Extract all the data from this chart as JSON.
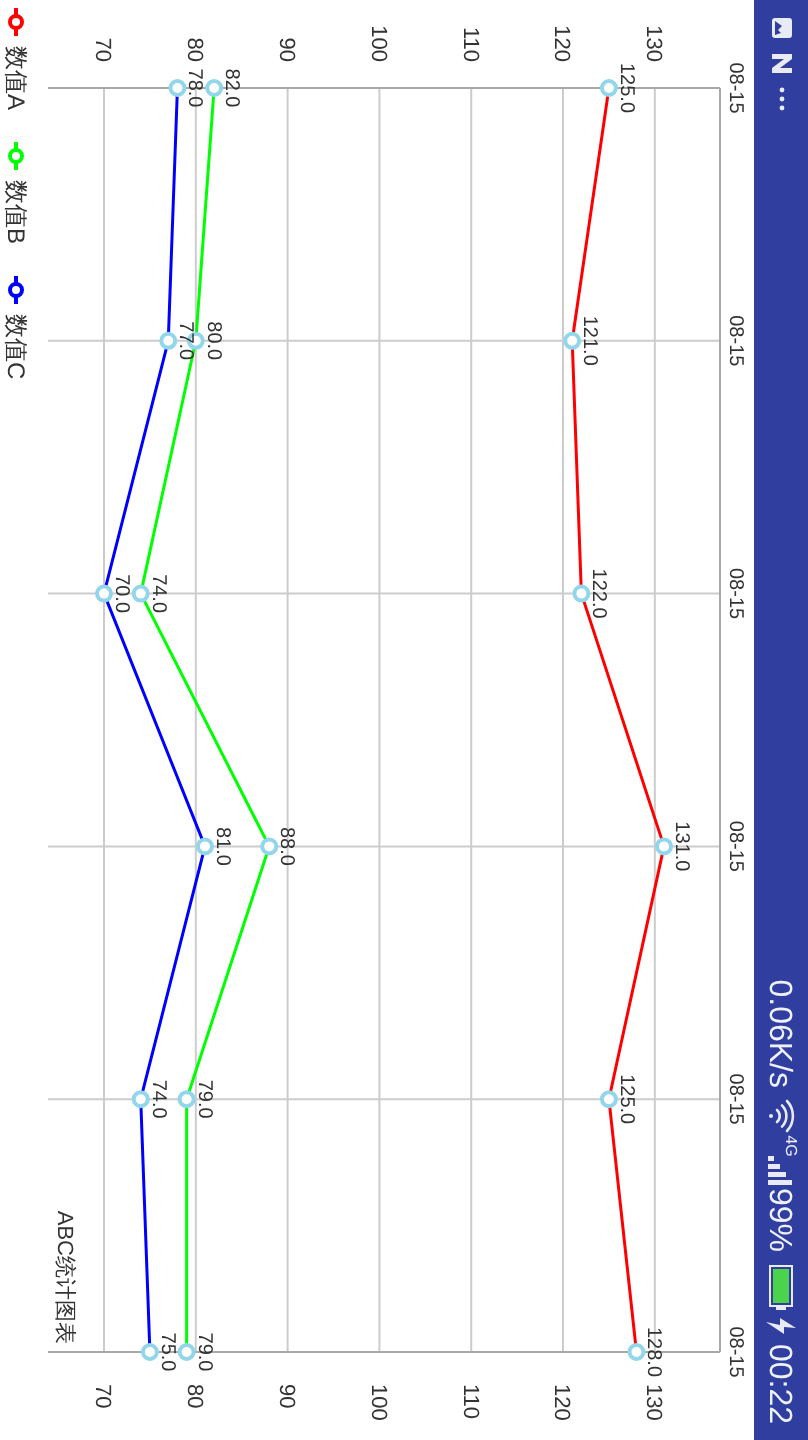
{
  "chart_data": {
    "type": "line",
    "orientation": "horizontal",
    "categories": [
      "08-15",
      "08-15",
      "08-15",
      "08-15",
      "08-15",
      "08-15"
    ],
    "series": [
      {
        "name": "数值A",
        "color": "#ff0000",
        "values": [
          125,
          121,
          122,
          131,
          125,
          128
        ],
        "value_labels": [
          "125.0",
          "121.0",
          "122.0",
          "131.0",
          "125.0",
          "128.0"
        ]
      },
      {
        "name": "数值B",
        "color": "#00ff00",
        "values": [
          82,
          80,
          74,
          88,
          79,
          79
        ],
        "value_labels": [
          "82.0",
          "80.0",
          "74.0",
          "88.0",
          "79.0",
          "79.0"
        ]
      },
      {
        "name": "数值C",
        "color": "#0000ff",
        "values": [
          78,
          77,
          70,
          81,
          74,
          75
        ],
        "value_labels": [
          "78.0",
          "77.0",
          "70.0",
          "81.0",
          "74.0",
          "75.0"
        ]
      }
    ],
    "xlim": [
      63.9,
      137.1
    ],
    "xticks": [
      70,
      80,
      90,
      100,
      110,
      120,
      130
    ],
    "x2lim": [
      63.9,
      137.1
    ],
    "x2ticks": [
      70,
      80,
      90,
      100,
      110,
      120,
      130
    ],
    "grid": true,
    "legend": "top left",
    "marker": "circle",
    "annotations": [
      "ABC统计图表",
      "0.06K/s",
      "4G",
      "99%",
      "00:22"
    ]
  }
}
